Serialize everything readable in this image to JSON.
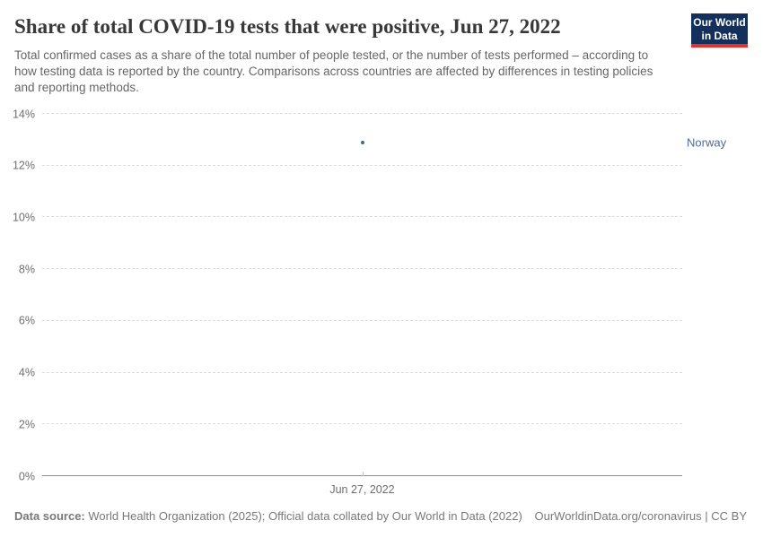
{
  "header": {
    "title": "Share of total COVID-19 tests that were positive, Jun 27, 2022",
    "subtitle": "Total confirmed cases as a share of the total number of people tested, or the number of tests performed – according to how testing data is reported by the country. Comparisons across countries are affected by differences in testing policies and reporting methods.",
    "logo": {
      "line1": "Our World",
      "line2": "in Data",
      "bg_color": "#12305B",
      "stripe_color": "#E2332C"
    }
  },
  "chart_data": {
    "type": "scatter",
    "title": "Share of total COVID-19 tests that were positive, Jun 27, 2022",
    "x": [
      "Jun 27, 2022"
    ],
    "xtick_label": "Jun 27, 2022",
    "series": [
      {
        "name": "Norway",
        "values": [
          12.9
        ],
        "color": "#3D6A9E",
        "label_color": "#4C6A9C"
      }
    ],
    "ylim": [
      0,
      14
    ],
    "yticks": [
      {
        "value": 0,
        "label": "0%"
      },
      {
        "value": 2,
        "label": "2%"
      },
      {
        "value": 4,
        "label": "4%"
      },
      {
        "value": 6,
        "label": "6%"
      },
      {
        "value": 8,
        "label": "8%"
      },
      {
        "value": 10,
        "label": "10%"
      },
      {
        "value": 12,
        "label": "12%"
      },
      {
        "value": 14,
        "label": "14%"
      }
    ],
    "grid": "horizontal-dashed",
    "legend_position": "right-of-point"
  },
  "footer": {
    "source_label": "Data source:",
    "source_text": "World Health Organization (2025); Official data collated by Our World in Data (2022)",
    "rights_link": "OurWorldinData.org/coronavirus",
    "rights_suffix": " | CC BY"
  }
}
